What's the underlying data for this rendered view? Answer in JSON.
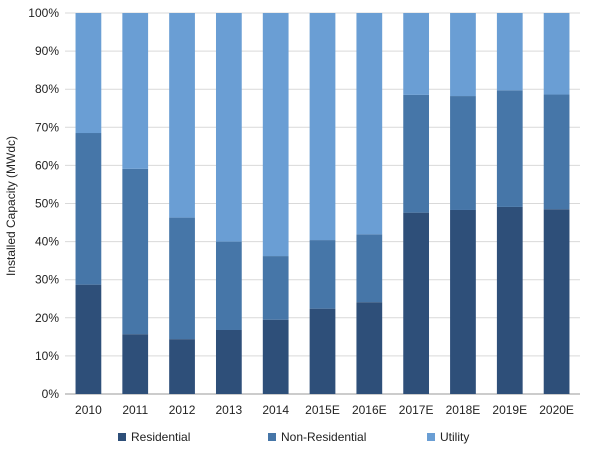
{
  "chart_data": {
    "type": "bar",
    "stacked": true,
    "title": "",
    "xlabel": "",
    "ylabel": "Installed Capacity (MWdc)",
    "ylim": [
      0,
      100
    ],
    "y_ticks": [
      "0%",
      "10%",
      "20%",
      "30%",
      "40%",
      "50%",
      "60%",
      "70%",
      "80%",
      "90%",
      "100%"
    ],
    "grid": true,
    "legend_position": "bottom",
    "categories": [
      "2010",
      "2011",
      "2012",
      "2013",
      "2014",
      "2015E",
      "2016E",
      "2017E",
      "2018E",
      "2019E",
      "2020E"
    ],
    "series": [
      {
        "name": "Residential",
        "color": "#2e4f79",
        "values": [
          28.7,
          15.7,
          14.4,
          16.8,
          19.5,
          22.4,
          24.1,
          47.6,
          48.3,
          49.1,
          48.5
        ]
      },
      {
        "name": "Non-Residential",
        "color": "#4676a8",
        "values": [
          39.8,
          43.4,
          31.9,
          23.2,
          16.7,
          18.0,
          17.8,
          30.9,
          29.9,
          30.6,
          30.1
        ]
      },
      {
        "name": "Utility",
        "color": "#6a9ed4",
        "values": [
          31.5,
          40.9,
          53.7,
          60.0,
          63.8,
          59.6,
          58.1,
          21.5,
          21.8,
          20.3,
          21.4
        ]
      }
    ]
  }
}
